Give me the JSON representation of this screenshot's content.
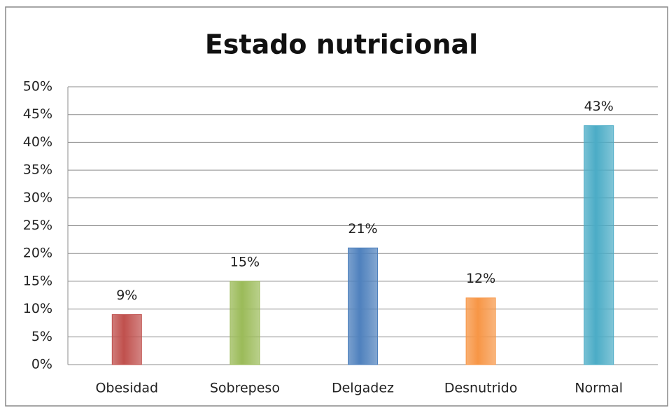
{
  "chart_data": {
    "type": "bar",
    "title": "Estado nutricional",
    "categories": [
      "Obesidad",
      "Sobrepeso",
      "Delgadez",
      "Desnutrido",
      "Normal"
    ],
    "values": [
      9,
      15,
      21,
      12,
      43
    ],
    "value_labels": [
      "9%",
      "15%",
      "21%",
      "12%",
      "43%"
    ],
    "colors": [
      "#c0504d",
      "#9bbb59",
      "#4f81bd",
      "#f79646",
      "#4bacc6"
    ],
    "ylim": [
      0,
      50
    ],
    "yticks": [
      {
        "value": 0,
        "label": "0%"
      },
      {
        "value": 5,
        "label": "5%"
      },
      {
        "value": 10,
        "label": "10%"
      },
      {
        "value": 15,
        "label": "15%"
      },
      {
        "value": 20,
        "label": "20%"
      },
      {
        "value": 25,
        "label": "25%"
      },
      {
        "value": 30,
        "label": "30%"
      },
      {
        "value": 35,
        "label": "35%"
      },
      {
        "value": 40,
        "label": "40%"
      },
      {
        "value": 45,
        "label": "45%"
      },
      {
        "value": 50,
        "label": "50%"
      }
    ],
    "grid": true
  }
}
